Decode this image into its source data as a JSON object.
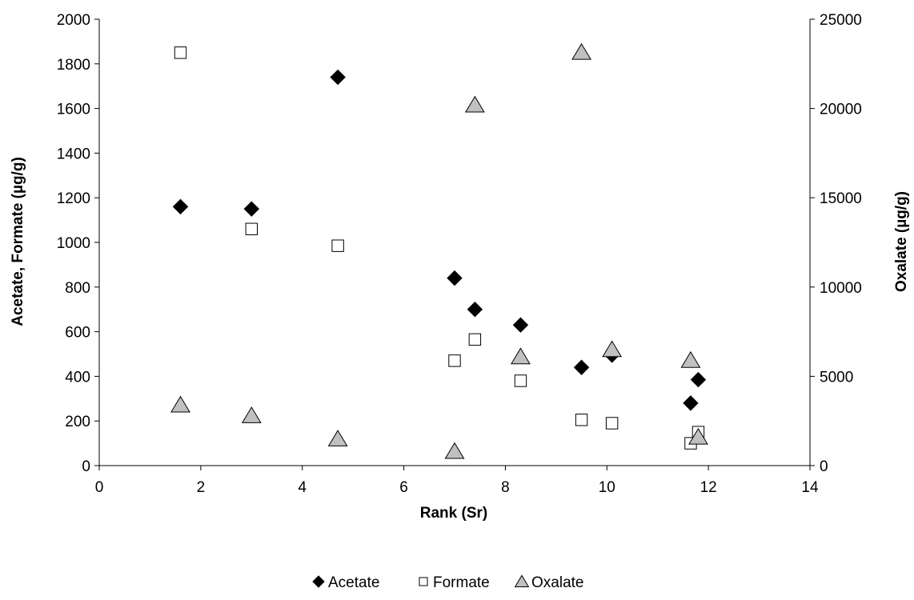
{
  "chart_data": {
    "type": "scatter",
    "title": "",
    "xlabel": "Rank (Sr)",
    "ylabel": "Acetate, Formate (µg/g)",
    "y2label": "Oxalate (µg/g)",
    "xlim": [
      0,
      14
    ],
    "ylim": [
      0,
      2000
    ],
    "y2lim": [
      0,
      25000
    ],
    "x_ticks": [
      0,
      2,
      4,
      6,
      8,
      10,
      12,
      14
    ],
    "y_ticks": [
      0,
      200,
      400,
      600,
      800,
      1000,
      1200,
      1400,
      1600,
      1800,
      2000
    ],
    "y2_ticks": [
      0,
      5000,
      10000,
      15000,
      20000,
      25000
    ],
    "grid": false,
    "legend_position": "bottom",
    "series": [
      {
        "name": "Acetate",
        "axis": "left",
        "marker": "diamond",
        "color": "#000000",
        "x": [
          1.6,
          3.0,
          4.7,
          7.0,
          7.4,
          8.3,
          9.5,
          10.1,
          11.65,
          11.8
        ],
        "y": [
          1160,
          1150,
          1740,
          840,
          700,
          630,
          440,
          495,
          280,
          385
        ]
      },
      {
        "name": "Formate",
        "axis": "left",
        "marker": "square-open",
        "color": "#000000",
        "x": [
          1.6,
          3.0,
          4.7,
          7.0,
          7.4,
          8.3,
          9.5,
          10.1,
          11.65,
          11.8
        ],
        "y": [
          1850,
          1060,
          985,
          470,
          565,
          380,
          205,
          190,
          100,
          150
        ]
      },
      {
        "name": "Oxalate",
        "axis": "right",
        "marker": "triangle",
        "color": "#c0c0c0",
        "x": [
          1.6,
          3.0,
          4.7,
          7.0,
          7.4,
          8.3,
          9.5,
          10.1,
          11.65,
          11.8
        ],
        "y": [
          3400,
          2800,
          1500,
          800,
          20200,
          6100,
          23150,
          6500,
          5900,
          1600
        ]
      }
    ]
  }
}
